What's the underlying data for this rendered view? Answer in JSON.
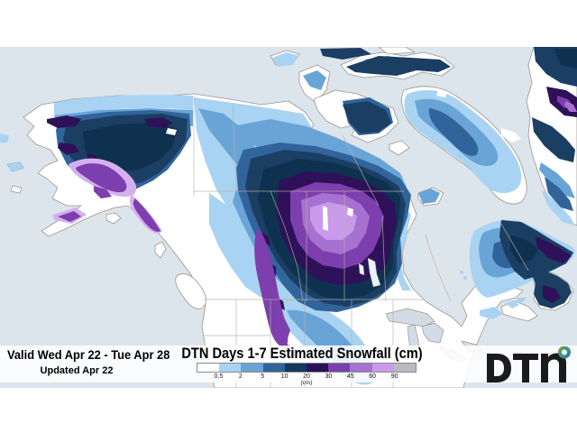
{
  "footer": {
    "valid_text": "Valid Wed Apr 22 - Tue Apr 28",
    "updated_text": "Updated Apr 22"
  },
  "legend": {
    "title": "DTN Days 1-7 Estimated Snowfall (cm)",
    "unit_label": "(cm)",
    "tick_labels": [
      "0.5",
      "2",
      "5",
      "10",
      "20",
      "30",
      "45",
      "60",
      "90"
    ],
    "segment_colors": [
      "#ffffff",
      "#a9d3f2",
      "#69a4d7",
      "#30649a",
      "#15395c",
      "#2d1158",
      "#7c3fad",
      "#a671d0",
      "#c99ae9",
      "#b9b9c0"
    ]
  },
  "logo": {
    "text": "DTN",
    "ring_green": "#5fa73f",
    "ring_blue": "#2a7dc0",
    "letter_color": "#1b1b1e"
  },
  "map": {
    "region": "North America snowfall map",
    "ocean_color": "#dce4ec",
    "land_color": "#ffffff",
    "lake_color": "#d3dce6",
    "coast_border_color": "#9d968c",
    "state_border_color": "#b9b1a5",
    "palette": {
      "snow_0_5_2": "#a9d3f2",
      "snow_2_5": "#69a4d7",
      "snow_5_10": "#30649a",
      "snow_10_20": "#1b3e63",
      "snow_20_30": "#0f3150",
      "snow_30_45": "#2e1158",
      "snow_45_60": "#7c3fad",
      "snow_60_90": "#a671d0",
      "snow_90_plus": "#c99ae9",
      "snow_gray_max": "#b9b9c0"
    }
  }
}
